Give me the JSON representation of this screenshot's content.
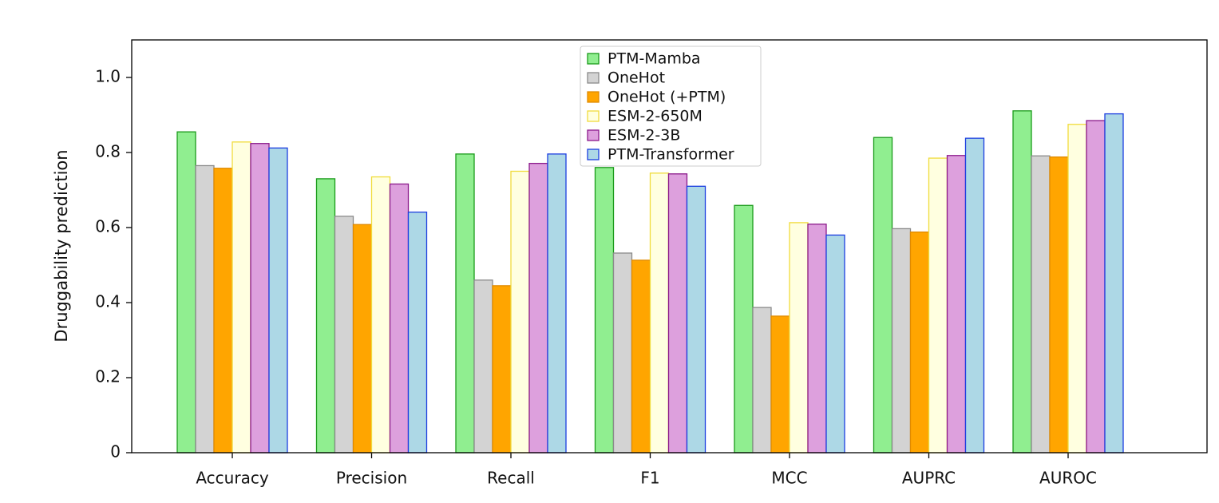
{
  "chart_data": {
    "type": "bar",
    "ylabel": "Druggability prediction",
    "categories": [
      "Accuracy",
      "Precision",
      "Recall",
      "F1",
      "MCC",
      "AUPRC",
      "AUROC"
    ],
    "series": [
      {
        "name": "PTM-Mamba",
        "color": "#90ee90",
        "edgecolor": "#1a9a1a",
        "values": [
          0.855,
          0.73,
          0.796,
          0.76,
          0.659,
          0.84,
          0.911
        ]
      },
      {
        "name": "OneHot",
        "color": "#d3d3d3",
        "edgecolor": "#8a8a8a",
        "values": [
          0.765,
          0.63,
          0.46,
          0.532,
          0.387,
          0.597,
          0.791
        ]
      },
      {
        "name": "OneHot (+PTM)",
        "color": "#ffa500",
        "edgecolor": "#e08a00",
        "values": [
          0.758,
          0.608,
          0.445,
          0.513,
          0.364,
          0.588,
          0.788
        ]
      },
      {
        "name": "ESM-2-650M",
        "color": "#ffffe0",
        "edgecolor": "#f0dc3c",
        "values": [
          0.828,
          0.735,
          0.75,
          0.745,
          0.613,
          0.785,
          0.875
        ]
      },
      {
        "name": "ESM-2-3B",
        "color": "#dda0dd",
        "edgecolor": "#8b1a8b",
        "values": [
          0.824,
          0.716,
          0.771,
          0.743,
          0.609,
          0.792,
          0.885
        ]
      },
      {
        "name": "PTM-Transformer",
        "color": "#add8e6",
        "edgecolor": "#1c3ee0",
        "values": [
          0.812,
          0.641,
          0.796,
          0.71,
          0.58,
          0.838,
          0.903
        ]
      }
    ],
    "ylim": [
      0,
      1.1
    ],
    "yticks": [
      0,
      0.2,
      0.4,
      0.6,
      0.8,
      {
        "value": 1.0,
        "label": "1.0"
      }
    ],
    "legend": "upper center"
  }
}
